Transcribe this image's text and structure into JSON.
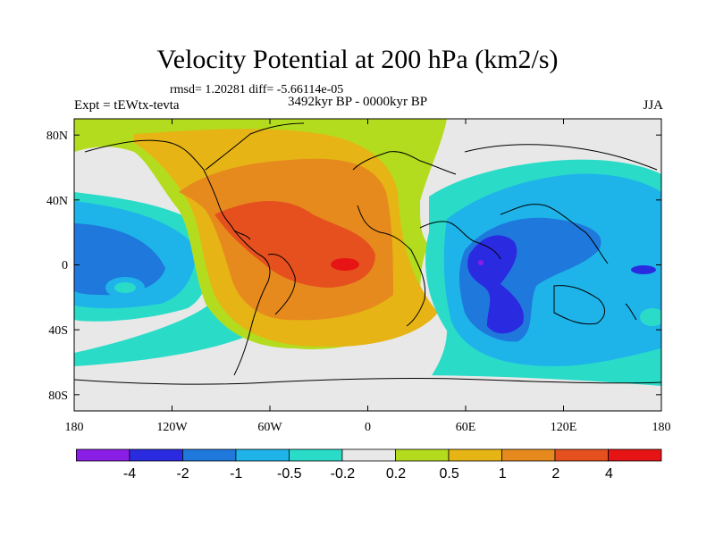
{
  "title": "Velocity Potential at 200 hPa (km2/s)",
  "stats": "rmsd= 1.20281 diff= -5.66114e-05",
  "experiment": "Expt = tEWtx-tevta",
  "period": "3492kyr BP - 0000kyr BP",
  "season": "JJA",
  "axes": {
    "lon_ticks": [
      "180",
      "120W",
      "60W",
      "0",
      "60E",
      "120E",
      "180"
    ],
    "lat_ticks": [
      "80N",
      "40N",
      "0",
      "40S",
      "80S"
    ]
  },
  "colorbar": {
    "colors": [
      "#8a1ee6",
      "#2a2ae0",
      "#1f78dc",
      "#1eb4ea",
      "#2adcc8",
      "#e8e8e8",
      "#b4dc1e",
      "#e6b414",
      "#e68a1e",
      "#e6501e",
      "#e61414"
    ],
    "labels": [
      "-4",
      "-2",
      "-1",
      "-0.5",
      "-0.2",
      "0.2",
      "0.5",
      "1",
      "2",
      "4"
    ]
  },
  "palette": {
    "neutral": "#e8e8e8",
    "pos1": "#b4dc1e",
    "pos2": "#e6b414",
    "pos3": "#e68a1e",
    "pos4": "#e6501e",
    "neg1": "#2adcc8",
    "neg2": "#1eb4ea",
    "neg3": "#1f78dc",
    "neg4": "#2a2ae0",
    "neg5": "#8a1ee6"
  }
}
